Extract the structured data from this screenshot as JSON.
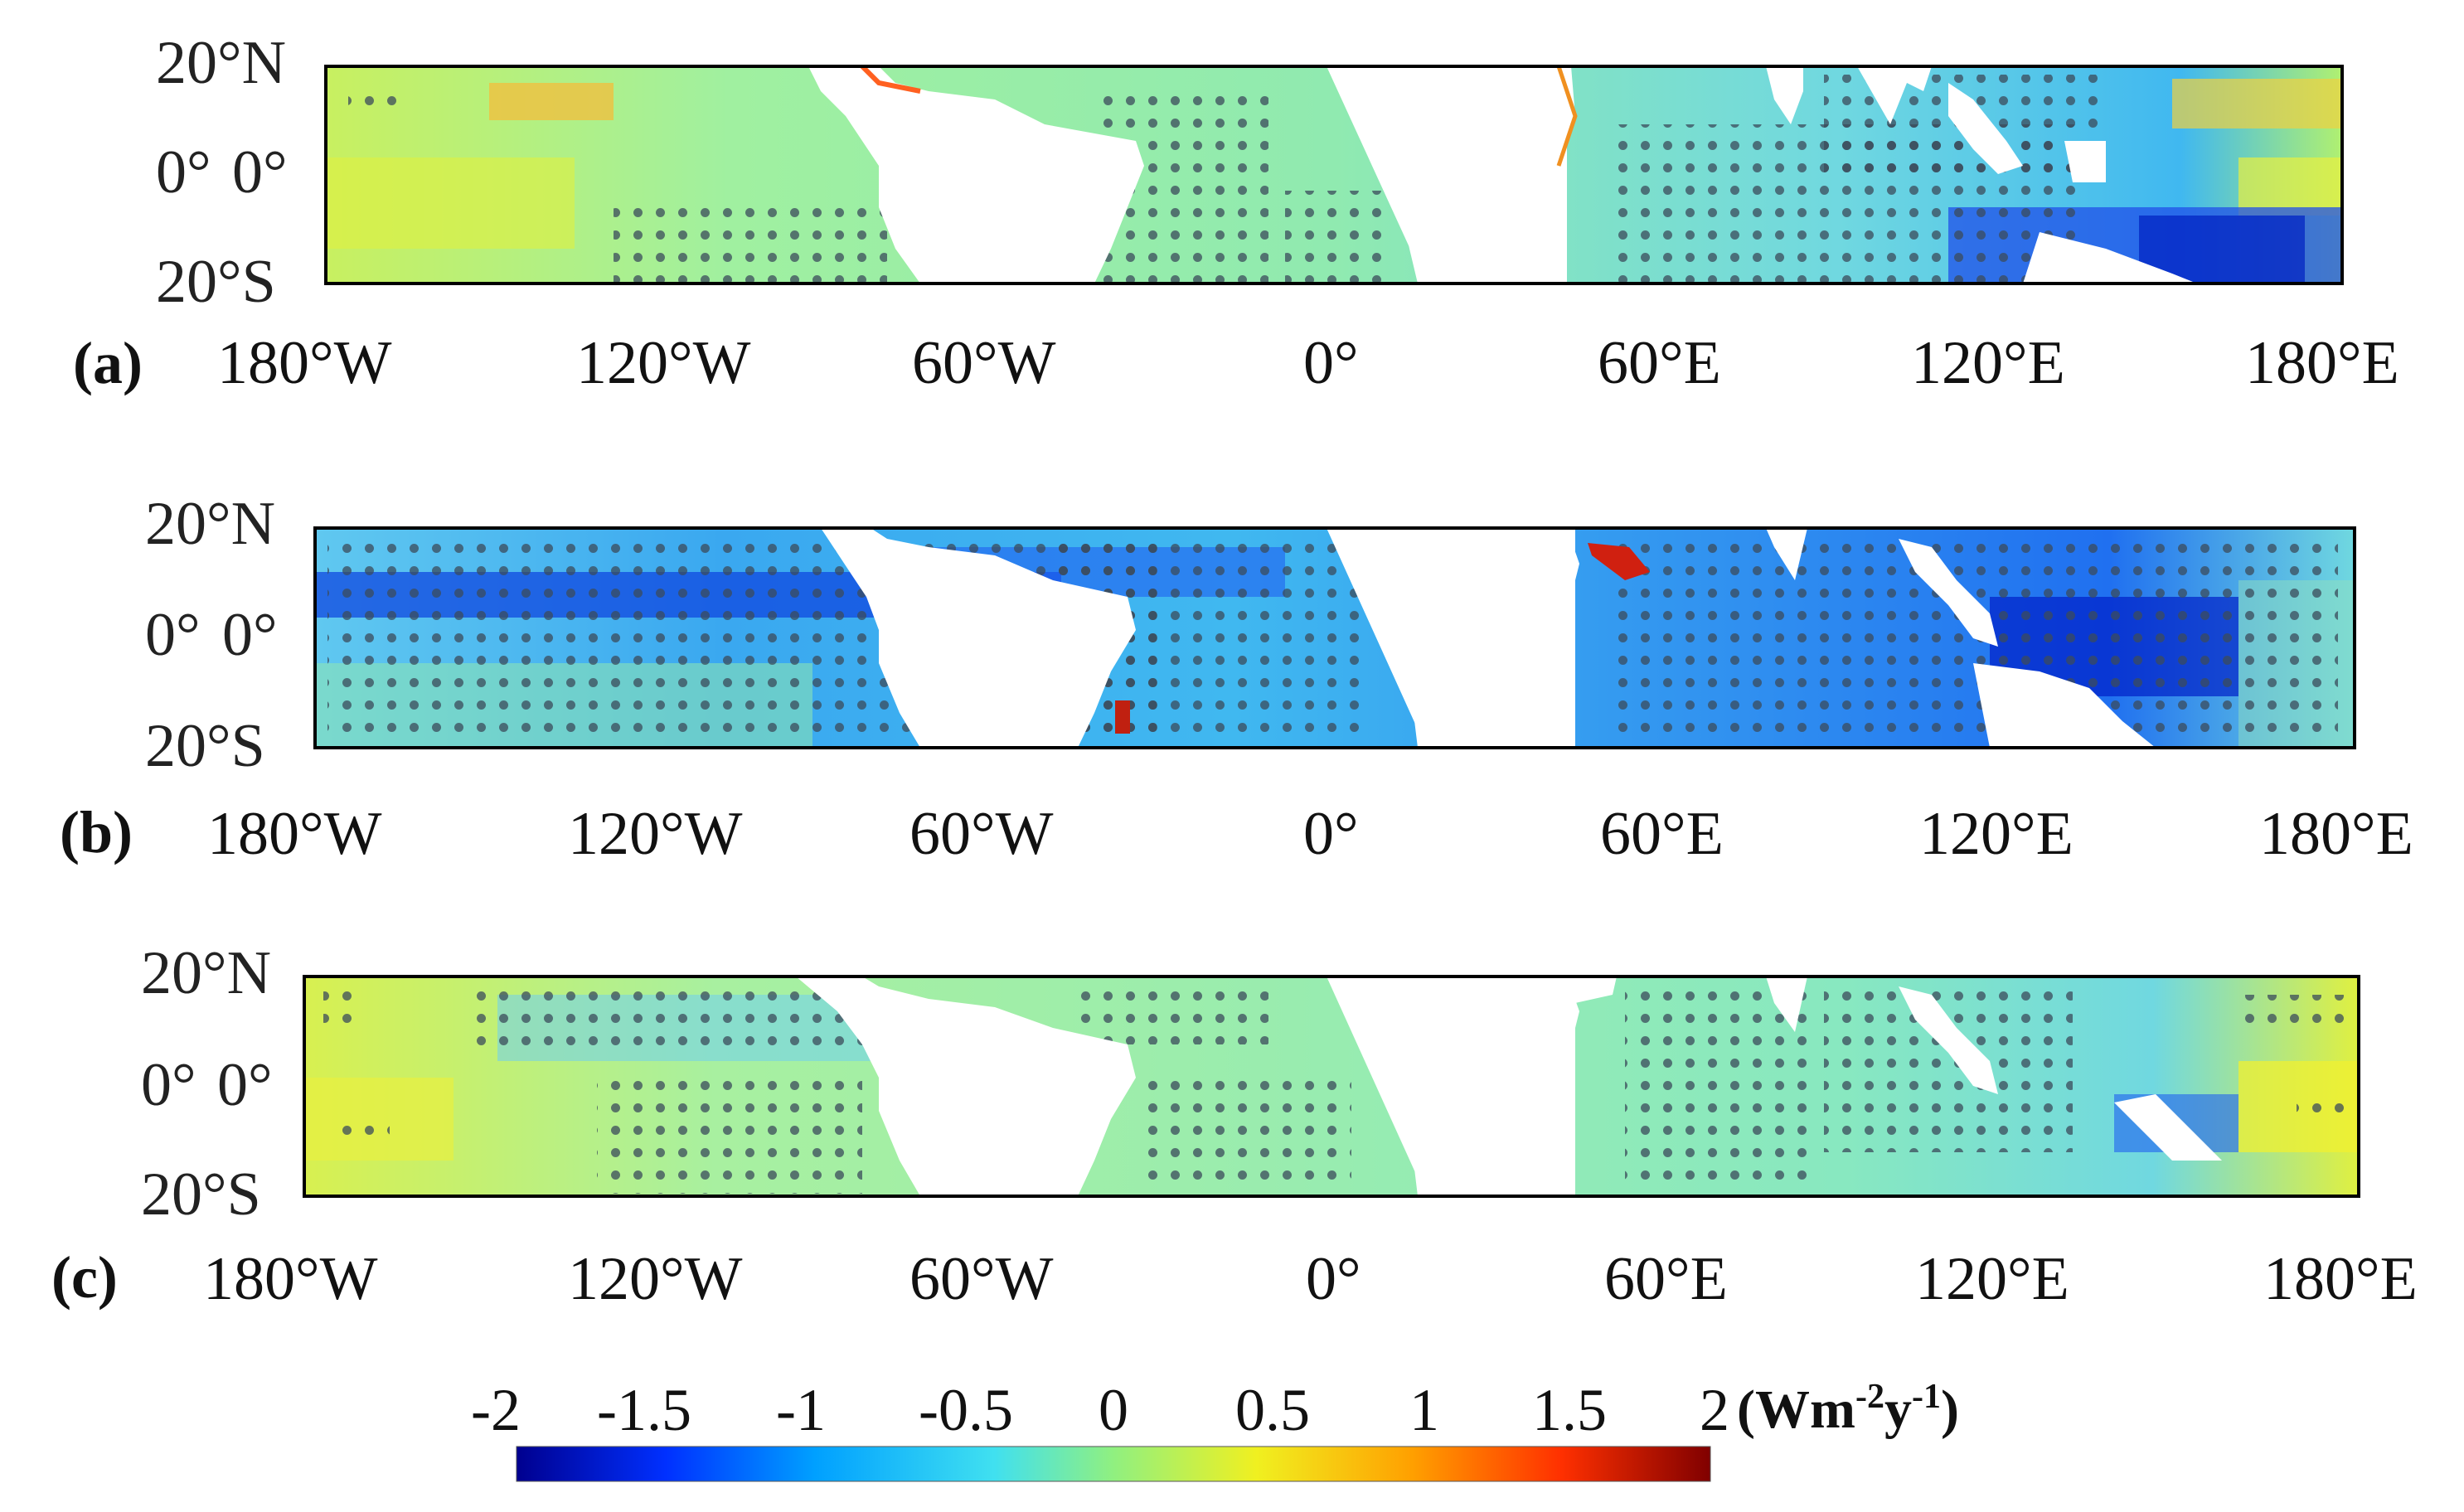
{
  "panels": [
    {
      "id": "a",
      "label": "(a)",
      "lat_labels": [
        "20°N",
        "0°",
        "0°",
        "20°S"
      ],
      "lon_labels": [
        "180°W",
        "120°W",
        "60°W",
        "0°",
        "60°E",
        "120°E",
        "180°E"
      ]
    },
    {
      "id": "b",
      "label": "(b)",
      "lat_labels": [
        "20°N",
        "0°",
        "0°",
        "20°S"
      ],
      "lon_labels": [
        "180°W",
        "120°W",
        "60°W",
        "0°",
        "60°E",
        "120°E",
        "180°E"
      ]
    },
    {
      "id": "c",
      "label": "(c)",
      "lat_labels": [
        "20°N",
        "0°",
        "0°",
        "20°S"
      ],
      "lon_labels": [
        "180°W",
        "120°W",
        "60°W",
        "0°",
        "60°E",
        "120°E",
        "180°E"
      ]
    }
  ],
  "colorbar": {
    "ticks": [
      "-2",
      "-1.5",
      "-1",
      "-0.5",
      "0",
      "0.5",
      "1",
      "1.5",
      "2"
    ],
    "unit_main": "(Wm",
    "unit_sup1": "-2",
    "unit_mid": "y",
    "unit_sup2": "-1",
    "unit_end": ")",
    "colors": [
      "#00008f",
      "#0030ff",
      "#00a0ff",
      "#40e0f0",
      "#90f080",
      "#f0f020",
      "#ffa000",
      "#ff3000",
      "#800000"
    ]
  }
}
